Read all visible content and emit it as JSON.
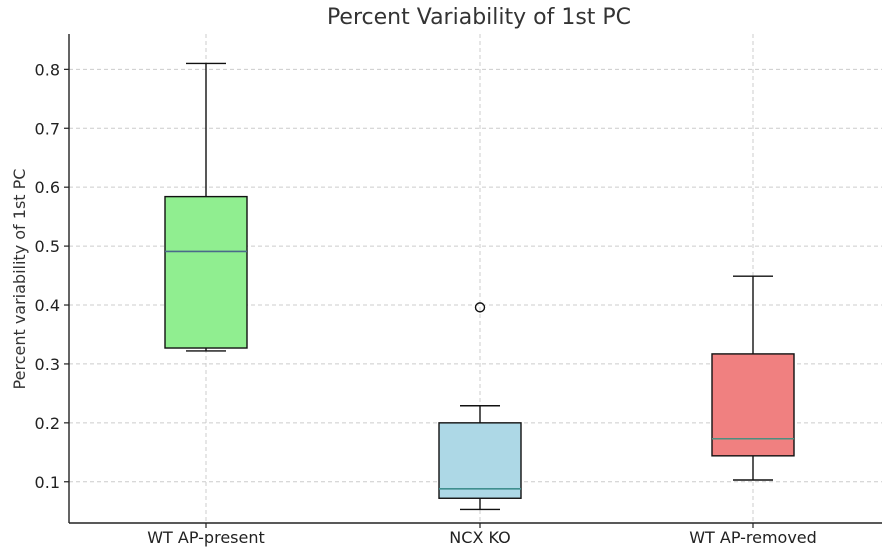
{
  "chart_data": {
    "type": "box",
    "title": "Percent Variability of 1st PC",
    "xlabel": "",
    "ylabel": "Percent variability of 1st PC",
    "ylim": [
      0.03,
      0.86
    ],
    "yticks": [
      0.1,
      0.2,
      0.3,
      0.4,
      0.5,
      0.6,
      0.7,
      0.8
    ],
    "ytick_labels": [
      "0.1",
      "0.2",
      "0.3",
      "0.4",
      "0.5",
      "0.6",
      "0.7",
      "0.8"
    ],
    "grid": true,
    "categories": [
      "WT AP-present",
      "NCX KO",
      "WT AP-removed"
    ],
    "boxes": [
      {
        "category": "WT AP-present",
        "whisker_low": 0.322,
        "q1": 0.327,
        "median": 0.491,
        "q3": 0.584,
        "whisker_high": 0.81,
        "fliers": [],
        "color": "#90ee90",
        "median_color": "#4a6a8a"
      },
      {
        "category": "NCX KO",
        "whisker_low": 0.053,
        "q1": 0.072,
        "median": 0.088,
        "q3": 0.2,
        "whisker_high": 0.229,
        "fliers": [
          0.396
        ],
        "color": "#add8e6",
        "median_color": "#3f8f8f"
      },
      {
        "category": "WT AP-removed",
        "whisker_low": 0.103,
        "q1": 0.144,
        "median": 0.173,
        "q3": 0.317,
        "whisker_high": 0.449,
        "fliers": [],
        "color": "#f08080",
        "median_color": "#4d8f80"
      }
    ]
  }
}
